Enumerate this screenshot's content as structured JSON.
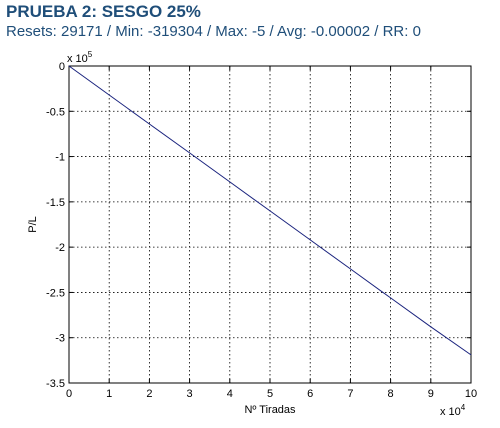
{
  "header": {
    "title": "PRUEBA 2: SESGO 25%",
    "subtitle": "Resets: 29171 / Min: -319304 / Max: -5 / Avg: -0.00002 / RR: 0"
  },
  "colors": {
    "title": "#1f4e79",
    "line": "#1a237e",
    "grid": "#000000"
  },
  "chart_data": {
    "type": "line",
    "title": "",
    "xlabel": "Nº Tiradas",
    "ylabel": "P/L",
    "x_multiplier_label": "x 10",
    "x_multiplier_exp": "4",
    "y_multiplier_label": "x 10",
    "y_multiplier_exp": "5",
    "xlim": [
      0,
      10
    ],
    "ylim": [
      -3.5,
      0
    ],
    "x_ticks": [
      "0",
      "1",
      "2",
      "3",
      "4",
      "5",
      "6",
      "7",
      "8",
      "9",
      "10"
    ],
    "y_ticks": [
      "0",
      "-0.5",
      "-1",
      "-1.5",
      "-2",
      "-2.5",
      "-3",
      "-3.5"
    ],
    "grid": true,
    "series": [
      {
        "x": [
          0,
          1,
          2,
          3,
          4,
          5,
          6,
          7,
          8,
          9,
          10
        ],
        "values": [
          0,
          -0.32,
          -0.64,
          -0.96,
          -1.28,
          -1.6,
          -1.92,
          -2.24,
          -2.56,
          -2.88,
          -3.19
        ]
      }
    ]
  }
}
